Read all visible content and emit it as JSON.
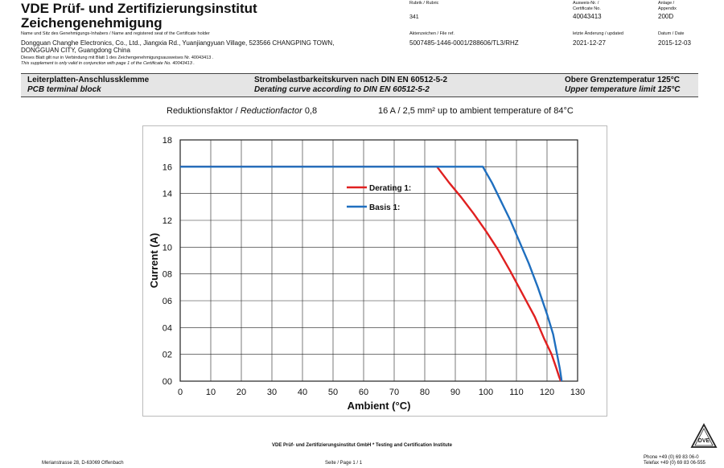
{
  "header": {
    "title_line1": "VDE Prüf- und Zertifizierungsinstitut",
    "title_line2": "Zeichengenehmigung",
    "holder_label": "Name und Sitz des Genehmigungs-Inhabers / Name and registered seat of the Certificate holder",
    "holder_address_line1": "Dongguan Changhe Electronics, Co., Ltd., Jiangxia Rd., Yuanjiangyuan Village, 523566 CHANGPING TOWN,",
    "holder_address_line2": "DONGGUAN CITY, Guangdong China",
    "validity_note_de": "Dieses Blatt gilt nur in Verbindung mit Blatt 1 des Zeichengenehmigungsausweises Nr. 40043413 .",
    "validity_note_en": "This supplement is only valid in conjunction with page 1 of the Certificate No. 40043413 .",
    "rubric_label": "Rubrik / Rubric",
    "rubric_value": "341",
    "certificate_label_de": "Ausweis-Nr. /",
    "certificate_label_en": "Certificate No.",
    "certificate_value": "40043413",
    "appendix_label_de": "Anlage /",
    "appendix_label_en": "Appendix",
    "appendix_value": "200D",
    "file_ref_label": "Aktenzeichen / File ref.",
    "file_ref_value": "5007485-1446-0001/288606/TL3/RHZ",
    "updated_label": "letzte Änderung / updated",
    "updated_value": "2021-12-27",
    "date_label": "Datum / Date",
    "date_value": "2015-12-03"
  },
  "product_box": {
    "col1_de": "Leiterplatten-Anschlussklemme",
    "col1_en": "PCB terminal block",
    "col2_de": "Strombelastbarkeitskurven nach DIN EN 60512-5-2",
    "col2_en": "Derating curve according to DIN EN 60512-5-2",
    "col3_de": "Obere Grenztemperatur 125°C",
    "col3_en": "Upper temperature limit 125°C"
  },
  "chart_info": {
    "reduction_label": "Reduktionsfaktor / ",
    "reduction_label_en": "Reductionfactor",
    "reduction_value": "0,8",
    "rating_text": "16 A / 2,5 mm² up to ambient temperature of 84°C"
  },
  "chart_data": {
    "type": "line",
    "title": "",
    "xlabel": "Ambient (°C)",
    "ylabel": "Current (A)",
    "xlim": [
      0,
      130
    ],
    "ylim": [
      0,
      18
    ],
    "x_ticks": [
      "0",
      "10",
      "20",
      "30",
      "40",
      "50",
      "60",
      "70",
      "80",
      "90",
      "100",
      "110",
      "120",
      "130"
    ],
    "y_ticks": [
      "00",
      "02",
      "04",
      "06",
      "08",
      "10",
      "12",
      "14",
      "16",
      "18"
    ],
    "grid": true,
    "legend_position": "center",
    "series": [
      {
        "name": "Derating 1:",
        "color": "#e02020",
        "points": [
          [
            0,
            16
          ],
          [
            84,
            16
          ],
          [
            88,
            14.8
          ],
          [
            92,
            13.7
          ],
          [
            96,
            12.5
          ],
          [
            100,
            11.2
          ],
          [
            104,
            9.8
          ],
          [
            108,
            8.2
          ],
          [
            112,
            6.5
          ],
          [
            116,
            4.8
          ],
          [
            119,
            3.2
          ],
          [
            121.5,
            2.0
          ],
          [
            123,
            1.0
          ],
          [
            124,
            0.3
          ],
          [
            124.5,
            0
          ]
        ]
      },
      {
        "name": "Basis 1:",
        "color": "#1f6fbf",
        "points": [
          [
            0,
            16
          ],
          [
            99,
            16
          ],
          [
            102,
            14.8
          ],
          [
            105,
            13.4
          ],
          [
            108,
            12.0
          ],
          [
            111,
            10.4
          ],
          [
            114,
            8.8
          ],
          [
            117,
            7.0
          ],
          [
            120,
            5.0
          ],
          [
            122,
            3.5
          ],
          [
            123.3,
            2.0
          ],
          [
            124.2,
            0.9
          ],
          [
            124.6,
            0.3
          ],
          [
            124.8,
            0
          ]
        ]
      }
    ]
  },
  "footer": {
    "institute": "VDE Prüf- und Zertifizierungsinstitut GmbH * Testing and Certification Institute",
    "address": "Merianstrasse 28, D-63069 Offenbach",
    "page": "Seite / Page 1 / 1",
    "phone": "Phone +49 (0) 69 83 06-0",
    "telefax": "Telefax +49 (0) 69 83 06-555",
    "logo_text": "DVE"
  }
}
